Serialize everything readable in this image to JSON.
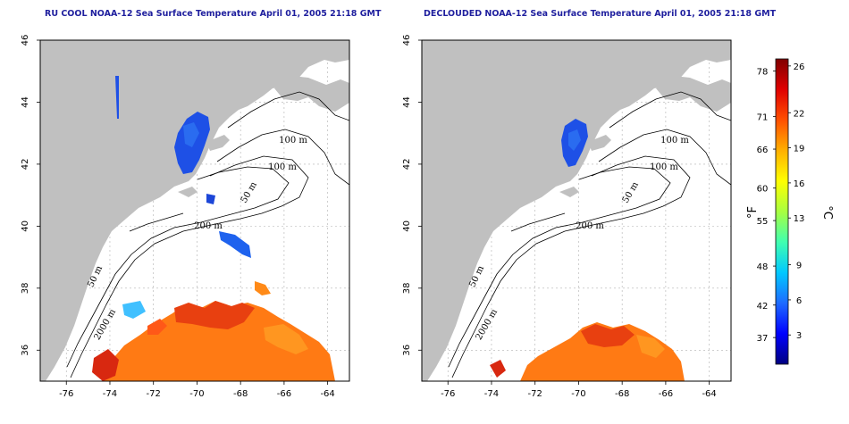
{
  "panels": [
    {
      "title": "RU COOL NOAA-12 Sea Surface Temperature April 01, 2005 21:18 GMT",
      "lon_ticks": [
        "-76",
        "-74",
        "-72",
        "-70",
        "-68",
        "-66",
        "-64"
      ],
      "lat_ticks": [
        "36",
        "38",
        "40",
        "42",
        "44",
        "46"
      ],
      "contour_labels": [
        "100 m",
        "100 m",
        "50 m",
        "200 m",
        "50 m",
        "2000 m"
      ]
    },
    {
      "title": "DECLOUDED NOAA-12 Sea Surface Temperature April 01, 2005 21:18 GMT",
      "lon_ticks": [
        "-76",
        "-74",
        "-72",
        "-70",
        "-68",
        "-66",
        "-64"
      ],
      "lat_ticks": [
        "36",
        "38",
        "40",
        "42",
        "44",
        "46"
      ],
      "contour_labels": [
        "100 m",
        "100 m",
        "50 m",
        "200 m",
        "50 m",
        "2000 m"
      ]
    }
  ],
  "colorbar": {
    "fahrenheit_ticks": [
      "78",
      "71",
      "66",
      "60",
      "55",
      "48",
      "42",
      "37"
    ],
    "celsius_ticks": [
      "26",
      "22",
      "19",
      "16",
      "13",
      "9",
      "6",
      "3"
    ],
    "fahrenheit_unit": "°F",
    "celsius_unit": "°C",
    "colors": [
      "#000080",
      "#0000ff",
      "#1e6bff",
      "#00c8ff",
      "#40ffb0",
      "#a8ff40",
      "#ffff00",
      "#ffb000",
      "#ff5000",
      "#e00000",
      "#800000"
    ]
  },
  "colors": {
    "land": "#c0c0c0",
    "ocean": "#ffffff",
    "contour": "#000000",
    "grid": "#b0b0b0",
    "title": "#1f1f9e"
  }
}
